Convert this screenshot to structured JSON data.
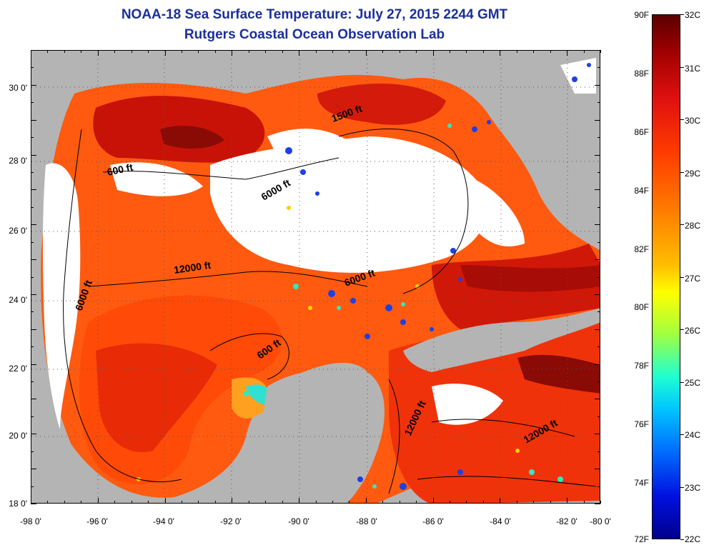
{
  "header": {
    "title": "NOAA-18 Sea Surface Temperature:  July 27, 2015 2244 GMT",
    "subtitle": "Rutgers Coastal Ocean Observation Lab"
  },
  "axes": {
    "y_labels": [
      "30 0'",
      "28 0'",
      "26 0'",
      "24 0'",
      "22 0'",
      "20 0'",
      "18 0'"
    ],
    "x_labels": [
      "-98 0'",
      "-96 0'",
      "-94 0'",
      "-92 0'",
      "-90 0'",
      "-88 0'",
      "-86 0'",
      "-84 0'",
      "-82 0'",
      "-80 0'"
    ]
  },
  "colorbar": {
    "fahrenheit": [
      "90F",
      "88F",
      "86F",
      "84F",
      "82F",
      "80F",
      "78F",
      "76F",
      "74F",
      "72F"
    ],
    "celsius": [
      "32C",
      "31C",
      "30C",
      "29C",
      "28C",
      "27C",
      "26C",
      "25C",
      "24C",
      "23C",
      "22C"
    ]
  },
  "isobaths": {
    "a": "600 ft",
    "b": "6000 ft",
    "c": "1500 ft",
    "d": "12000 ft",
    "e": "6000 ft",
    "f": "6000 ft",
    "g": "600 ft",
    "h": "12000 ft",
    "i": "12000 ft"
  },
  "colors": {
    "land": "#b4b4b4",
    "cloud": "#ffffff",
    "title": "#1b2f9a"
  }
}
